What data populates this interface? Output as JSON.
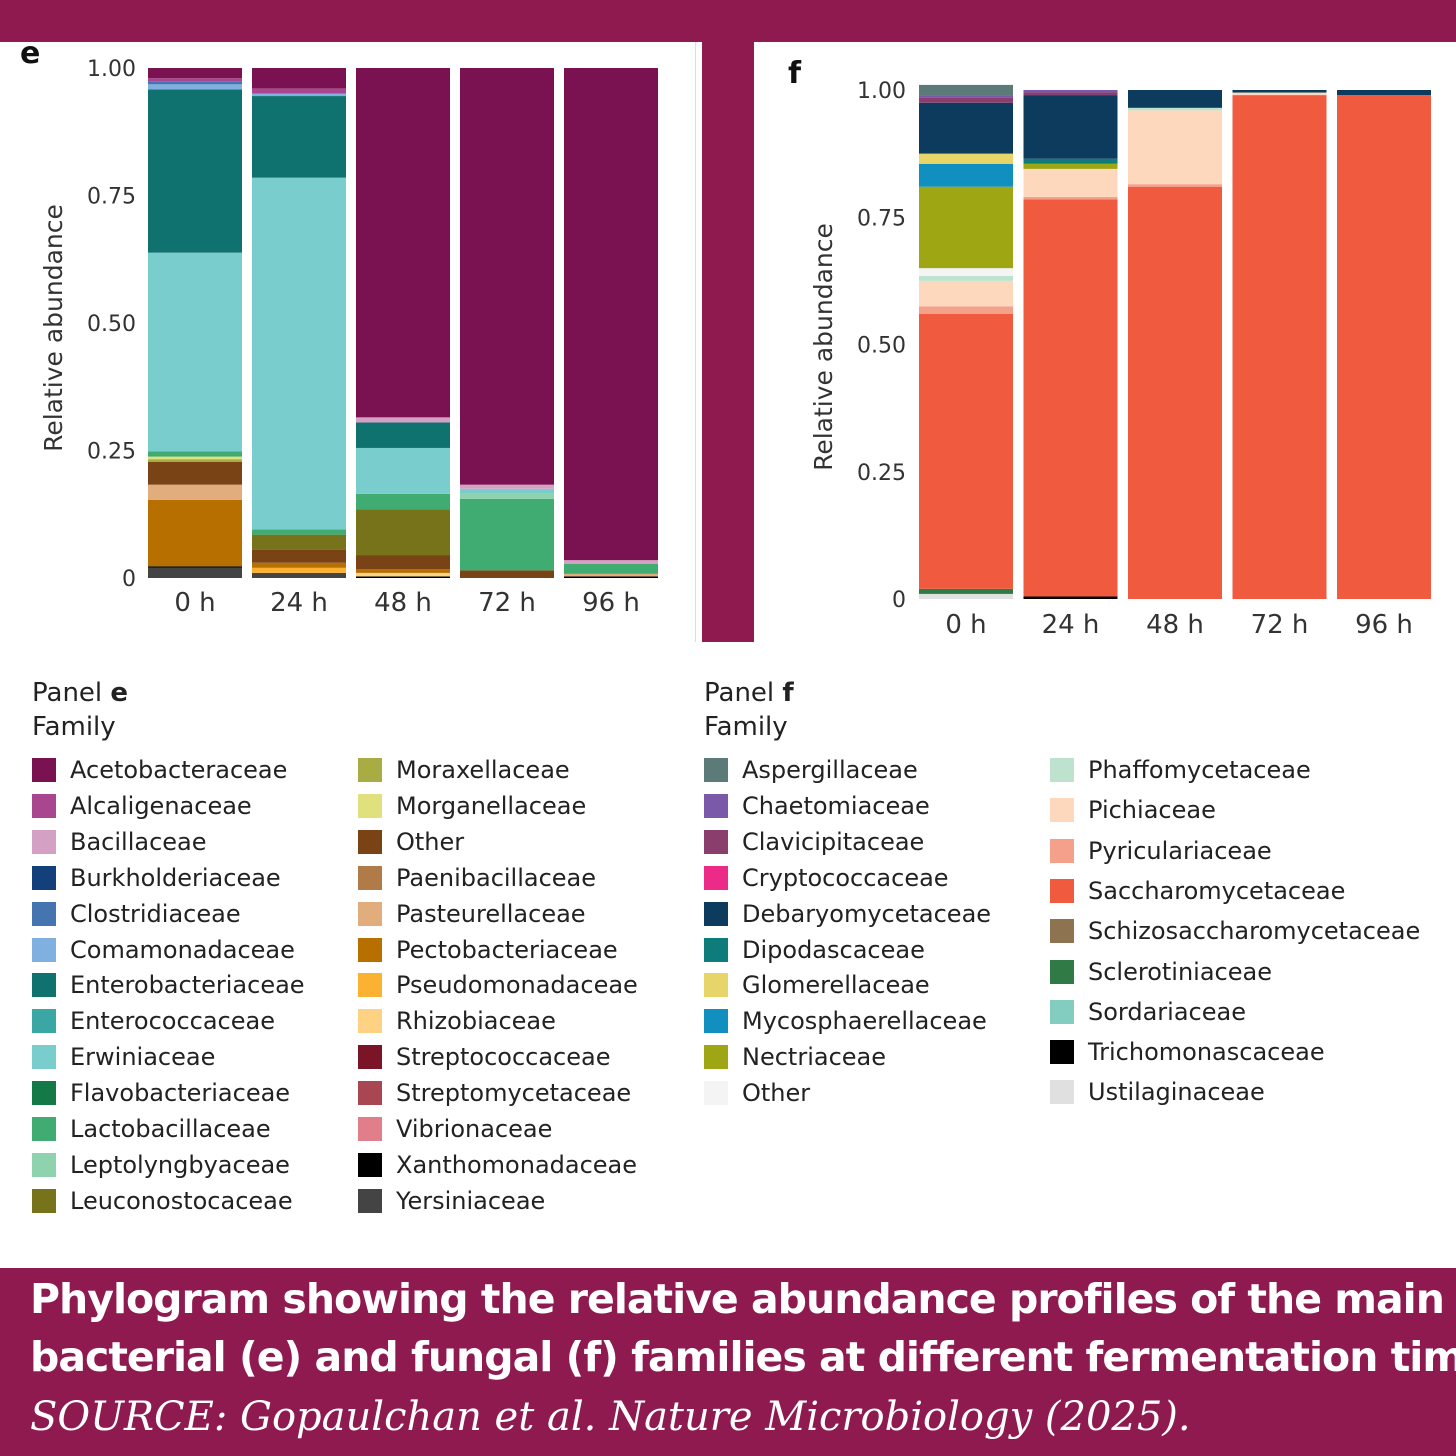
{
  "caption": {
    "line1": "Phylogram showing the relative abundance profiles of the main",
    "line2": "bacterial (e) and fungal (f) families at different fermentation times",
    "source": "SOURCE: Gopaulchan et al. Nature Microbiology (2025)."
  },
  "legend_e": {
    "title_prefix": "Panel ",
    "title_letter": "e",
    "subtitle": "Family",
    "items": [
      {
        "label": "Acetobacteraceae",
        "color": "#7a1150"
      },
      {
        "label": "Alcaligenaceae",
        "color": "#a8478f"
      },
      {
        "label": "Bacillaceae",
        "color": "#d4a0c4"
      },
      {
        "label": "Burkholderiaceae",
        "color": "#133f7a"
      },
      {
        "label": "Clostridiaceae",
        "color": "#4575b0"
      },
      {
        "label": "Comamonadaceae",
        "color": "#7fb0e0"
      },
      {
        "label": "Enterobacteriaceae",
        "color": "#10726f"
      },
      {
        "label": "Enterococcaceae",
        "color": "#3aa7a5"
      },
      {
        "label": "Erwiniaceae",
        "color": "#79cdcc"
      },
      {
        "label": "Flavobacteriaceae",
        "color": "#137a47"
      },
      {
        "label": "Lactobacillaceae",
        "color": "#41ac72"
      },
      {
        "label": "Leptolyngbyaceae",
        "color": "#8ed3ad"
      },
      {
        "label": "Leuconostocaceae",
        "color": "#76731a"
      },
      {
        "label": "Moraxellaceae",
        "color": "#a9ab43"
      },
      {
        "label": "Morganellaceae",
        "color": "#e0e17d"
      },
      {
        "label": "Other",
        "color": "#7a4316"
      },
      {
        "label": "Paenibacillaceae",
        "color": "#b07b49"
      },
      {
        "label": "Pasteurellaceae",
        "color": "#e1ad7d"
      },
      {
        "label": "Pectobacteriaceae",
        "color": "#b76f00"
      },
      {
        "label": "Pseudomonadaceae",
        "color": "#fbb232"
      },
      {
        "label": "Rhizobiaceae",
        "color": "#fdd383"
      },
      {
        "label": "Streptococcaceae",
        "color": "#7a1426"
      },
      {
        "label": "Streptomycetaceae",
        "color": "#a84651"
      },
      {
        "label": "Vibrionaceae",
        "color": "#e07e89"
      },
      {
        "label": "Xanthomonadaceae",
        "color": "#000000"
      },
      {
        "label": "Yersiniaceae",
        "color": "#444444"
      }
    ]
  },
  "legend_f": {
    "title_prefix": "Panel ",
    "title_letter": "f",
    "subtitle": "Family",
    "items": [
      {
        "label": "Aspergillaceae",
        "color": "#5c7a78"
      },
      {
        "label": "Chaetomiaceae",
        "color": "#7a5aa8"
      },
      {
        "label": "Clavicipitaceae",
        "color": "#8a3e6e"
      },
      {
        "label": "Cryptococcaceae",
        "color": "#ec2a87"
      },
      {
        "label": "Debaryomycetaceae",
        "color": "#0d3b5e"
      },
      {
        "label": "Dipodascaceae",
        "color": "#0e7c7b"
      },
      {
        "label": "Glomerellaceae",
        "color": "#e8d56a"
      },
      {
        "label": "Mycosphaerellaceae",
        "color": "#1190c0"
      },
      {
        "label": "Nectriaceae",
        "color": "#9ea613"
      },
      {
        "label": "Other",
        "color": "#f4f4f4"
      },
      {
        "label": "Phaffomycetaceae",
        "color": "#bde3cf"
      },
      {
        "label": "Pichiaceae",
        "color": "#fdd8bd"
      },
      {
        "label": "Pyriculariaceae",
        "color": "#f5a08a"
      },
      {
        "label": "Saccharomycetaceae",
        "color": "#f05a3f"
      },
      {
        "label": "Schizosaccharomycetaceae",
        "color": "#8e7351"
      },
      {
        "label": "Sclerotiniaceae",
        "color": "#2f7a45"
      },
      {
        "label": "Sordariaceae",
        "color": "#83ccc0"
      },
      {
        "label": "Trichomonascaceae",
        "color": "#000000"
      },
      {
        "label": "Ustilaginaceae",
        "color": "#e0e0e0"
      }
    ]
  },
  "chart_data": [
    {
      "type": "bar",
      "stacked": true,
      "panel": "e",
      "ylabel": "Relative abundance",
      "ylim": [
        0,
        1
      ],
      "yticks": [
        "0",
        "0.25",
        "0.50",
        "0.75",
        "1.00"
      ],
      "categories": [
        "0 h",
        "24 h",
        "48 h",
        "72 h",
        "96 h"
      ],
      "stacks": [
        [
          {
            "family": "Yersiniaceae",
            "value": 0.02
          },
          {
            "family": "Xanthomonadaceae",
            "value": 0.003
          },
          {
            "family": "Pectobacteriaceae",
            "value": 0.13
          },
          {
            "family": "Pasteurellaceae",
            "value": 0.03
          },
          {
            "family": "Other",
            "value": 0.045
          },
          {
            "family": "Moraxellaceae",
            "value": 0.005
          },
          {
            "family": "Morganellaceae",
            "value": 0.005
          },
          {
            "family": "Lactobacillaceae",
            "value": 0.01
          },
          {
            "family": "Erwiniaceae",
            "value": 0.39
          },
          {
            "family": "Enterobacteriaceae",
            "value": 0.32
          },
          {
            "family": "Comamonadaceae",
            "value": 0.01
          },
          {
            "family": "Clostridiaceae",
            "value": 0.005
          },
          {
            "family": "Alcaligenaceae",
            "value": 0.007
          },
          {
            "family": "Acetobacteraceae",
            "value": 0.02
          }
        ],
        [
          {
            "family": "Yersiniaceae",
            "value": 0.01
          },
          {
            "family": "Pseudomonadaceae",
            "value": 0.01
          },
          {
            "family": "Pectobacteriaceae",
            "value": 0.01
          },
          {
            "family": "Other",
            "value": 0.025
          },
          {
            "family": "Leuconostocaceae",
            "value": 0.03
          },
          {
            "family": "Lactobacillaceae",
            "value": 0.01
          },
          {
            "family": "Erwiniaceae",
            "value": 0.69
          },
          {
            "family": "Enterobacteriaceae",
            "value": 0.16
          },
          {
            "family": "Comamonadaceae",
            "value": 0.005
          },
          {
            "family": "Alcaligenaceae",
            "value": 0.01
          },
          {
            "family": "Acetobacteraceae",
            "value": 0.04
          }
        ],
        [
          {
            "family": "Xanthomonadaceae",
            "value": 0.003
          },
          {
            "family": "Rhizobiaceae",
            "value": 0.007
          },
          {
            "family": "Pectobacteriaceae",
            "value": 0.007
          },
          {
            "family": "Other",
            "value": 0.028
          },
          {
            "family": "Leuconostocaceae",
            "value": 0.09
          },
          {
            "family": "Lactobacillaceae",
            "value": 0.03
          },
          {
            "family": "Erwiniaceae",
            "value": 0.09
          },
          {
            "family": "Enterobacteriaceae",
            "value": 0.05
          },
          {
            "family": "Bacillaceae",
            "value": 0.01
          },
          {
            "family": "Acetobacteraceae",
            "value": 0.685
          }
        ],
        [
          {
            "family": "Other",
            "value": 0.015
          },
          {
            "family": "Lactobacillaceae",
            "value": 0.14
          },
          {
            "family": "Leptolyngbyaceae",
            "value": 0.01
          },
          {
            "family": "Erwiniaceae",
            "value": 0.01
          },
          {
            "family": "Bacillaceae",
            "value": 0.008
          },
          {
            "family": "Acetobacteraceae",
            "value": 0.817
          }
        ],
        [
          {
            "family": "Xanthomonadaceae",
            "value": 0.003
          },
          {
            "family": "Pasteurellaceae",
            "value": 0.005
          },
          {
            "family": "Lactobacillaceae",
            "value": 0.02
          },
          {
            "family": "Bacillaceae",
            "value": 0.007
          },
          {
            "family": "Acetobacteraceae",
            "value": 0.965
          }
        ]
      ]
    },
    {
      "type": "bar",
      "stacked": true,
      "panel": "f",
      "ylabel": "Relative abundance",
      "ylim": [
        0,
        1
      ],
      "yticks": [
        "0",
        "0.25",
        "0.50",
        "0.75",
        "1.00"
      ],
      "categories": [
        "0 h",
        "24 h",
        "48 h",
        "72 h",
        "96 h"
      ],
      "stacks": [
        [
          {
            "family": "Ustilaginaceae",
            "value": 0.01
          },
          {
            "family": "Sclerotiniaceae",
            "value": 0.01
          },
          {
            "family": "Saccharomycetaceae",
            "value": 0.54
          },
          {
            "family": "Pyriculariaceae",
            "value": 0.015
          },
          {
            "family": "Pichiaceae",
            "value": 0.05
          },
          {
            "family": "Phaffomycetaceae",
            "value": 0.01
          },
          {
            "family": "Other",
            "value": 0.015
          },
          {
            "family": "Nectriaceae",
            "value": 0.16
          },
          {
            "family": "Mycosphaerellaceae",
            "value": 0.045
          },
          {
            "family": "Glomerellaceae",
            "value": 0.02
          },
          {
            "family": "Debaryomycetaceae",
            "value": 0.1
          },
          {
            "family": "Clavicipitaceae",
            "value": 0.01
          },
          {
            "family": "Chaetomiaceae",
            "value": 0.005
          },
          {
            "family": "Aspergillaceae",
            "value": 0.02
          }
        ],
        [
          {
            "family": "Trichomonascaceae",
            "value": 0.005
          },
          {
            "family": "Saccharomycetaceae",
            "value": 0.78
          },
          {
            "family": "Pyriculariaceae",
            "value": 0.005
          },
          {
            "family": "Pichiaceae",
            "value": 0.055
          },
          {
            "family": "Nectriaceae",
            "value": 0.01
          },
          {
            "family": "Dipodascaceae",
            "value": 0.01
          },
          {
            "family": "Debaryomycetaceae",
            "value": 0.125
          },
          {
            "family": "Clavicipitaceae",
            "value": 0.005
          },
          {
            "family": "Chaetomiaceae",
            "value": 0.005
          }
        ],
        [
          {
            "family": "Saccharomycetaceae",
            "value": 0.81
          },
          {
            "family": "Pyriculariaceae",
            "value": 0.005
          },
          {
            "family": "Pichiaceae",
            "value": 0.145
          },
          {
            "family": "Phaffomycetaceae",
            "value": 0.005
          },
          {
            "family": "Debaryomycetaceae",
            "value": 0.035
          }
        ],
        [
          {
            "family": "Saccharomycetaceae",
            "value": 0.99
          },
          {
            "family": "Pichiaceae",
            "value": 0.005
          },
          {
            "family": "Debaryomycetaceae",
            "value": 0.005
          }
        ],
        [
          {
            "family": "Saccharomycetaceae",
            "value": 0.99
          },
          {
            "family": "Debaryomycetaceae",
            "value": 0.01
          }
        ]
      ]
    }
  ]
}
